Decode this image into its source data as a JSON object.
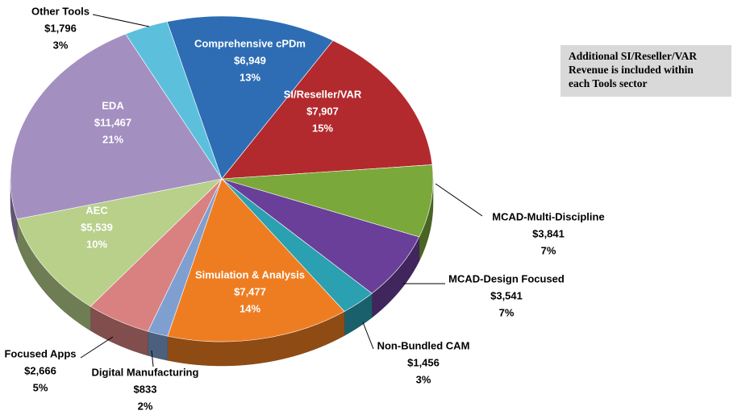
{
  "chart_data": {
    "type": "pie",
    "categories": [
      "Comprehensive cPDm",
      "SI/Reseller/VAR",
      "MCAD-Multi-Discipline",
      "MCAD-Design Focused",
      "Non-Bundled CAM",
      "Simulation & Analysis",
      "Digital Manufacturing",
      "Focused Apps",
      "AEC",
      "EDA",
      "Other Tools"
    ],
    "values": [
      6949,
      7907,
      3841,
      3541,
      1456,
      7477,
      833,
      2666,
      5539,
      11467,
      1796
    ],
    "value_labels": [
      "$6,949",
      "$7,907",
      "$3,841",
      "$3,541",
      "$1,456",
      "$7,477",
      "$833",
      "$2,666",
      "$5,539",
      "$11,467",
      "$1,796"
    ],
    "shares": [
      13,
      15,
      7,
      7,
      3,
      14,
      2,
      5,
      10,
      21,
      3
    ],
    "share_labels": [
      "13%",
      "15%",
      "7%",
      "7%",
      "3%",
      "14%",
      "2%",
      "5%",
      "10%",
      "21%",
      "3%"
    ],
    "colors": [
      "#2e6db4",
      "#b22a2e",
      "#7aa83a",
      "#6a3f99",
      "#2aa0b0",
      "#ee7d22",
      "#7f9fd0",
      "#d98080",
      "#b8d08a",
      "#a38fc0",
      "#5cc0dc"
    ],
    "annotation": [
      "Additional SI/Reseller/VAR",
      "Revenue is included within",
      "each Tools sector"
    ]
  }
}
